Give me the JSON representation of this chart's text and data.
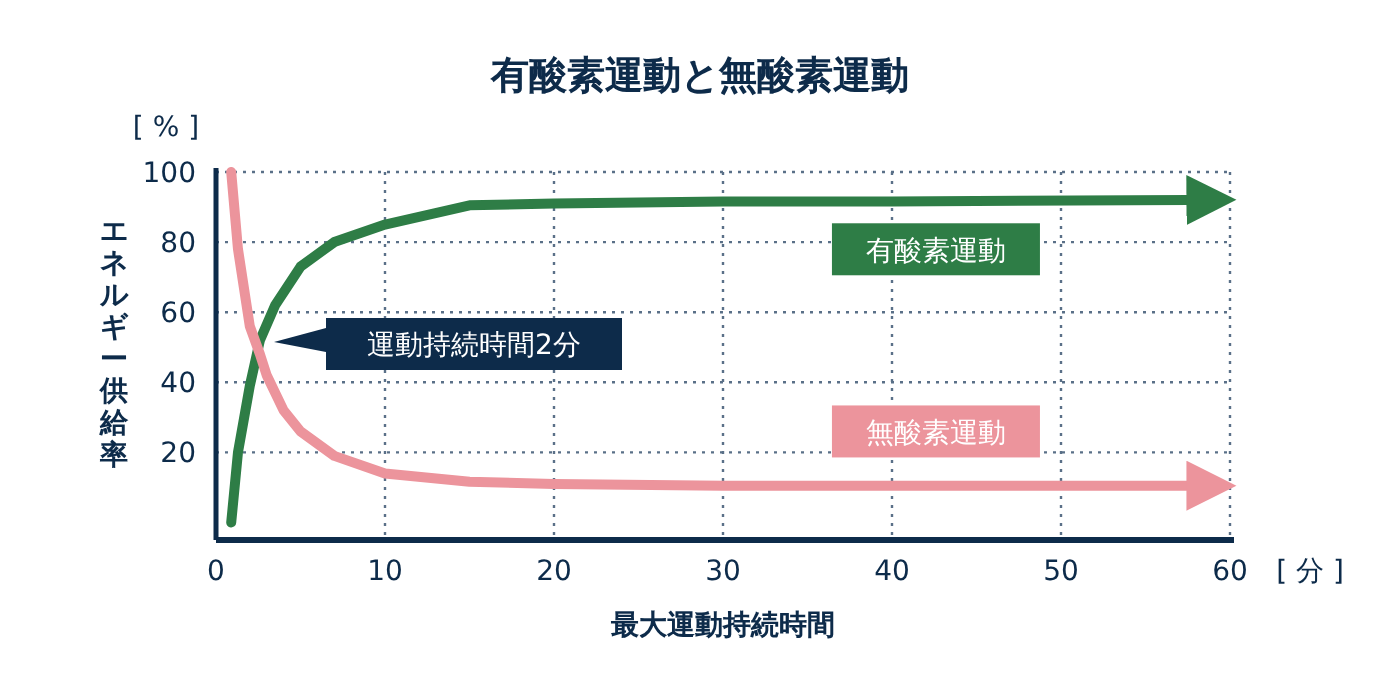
{
  "chart_data": {
    "type": "line",
    "title": "有酸素運動と無酸素運動",
    "xlabel": "最大運動持続時間",
    "ylabel": "エネルギー供給率",
    "annotations": [
      "[ % ]",
      "[ 分 ]",
      "運動持続時間2分"
    ],
    "xlim": [
      0,
      60
    ],
    "xticks": [
      0,
      10,
      20,
      30,
      40,
      50,
      60
    ],
    "ylim": [
      -5,
      100
    ],
    "yticks": [
      20,
      40,
      60,
      80,
      100
    ],
    "grid": true,
    "marker": "none",
    "line_style": "solid",
    "series": [
      {
        "name": "有酸素運動",
        "color": "#2e7d46",
        "x": [
          0.9,
          1.3,
          2,
          2.6,
          3.5,
          5,
          7,
          10,
          15,
          20,
          30,
          40,
          57.6
        ],
        "values": [
          0,
          20,
          39,
          52,
          62,
          73,
          80,
          85,
          90.5,
          91,
          91.6,
          91.6,
          92
        ]
      },
      {
        "name": "無酸素運動",
        "color": "#ec949c",
        "x": [
          0.9,
          1.3,
          2,
          2.6,
          3,
          4,
          5,
          7,
          10,
          15,
          20,
          30,
          40,
          57.6
        ],
        "values": [
          100,
          78,
          56,
          48,
          42,
          32,
          26,
          19,
          14,
          11.6,
          11,
          10.5,
          10.5,
          10.5
        ]
      }
    ]
  }
}
